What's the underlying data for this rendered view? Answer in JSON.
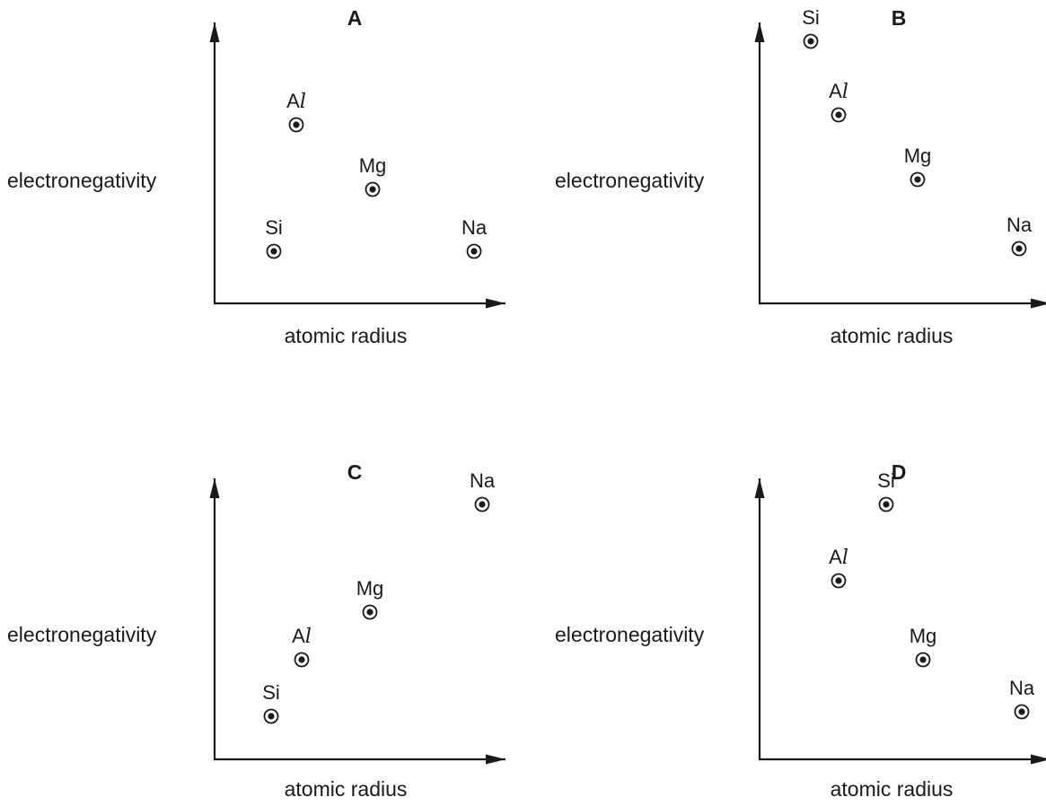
{
  "chart_data": [
    {
      "type": "scatter",
      "title": "A",
      "xlabel": "atomic radius",
      "ylabel": "electronegativity",
      "grid": false,
      "x_ticks": "none",
      "y_ticks": "none",
      "points": [
        {
          "label": "Al",
          "x": 0.29,
          "y": 0.75
        },
        {
          "label": "Mg",
          "x": 0.56,
          "y": 0.48
        },
        {
          "label": "Si",
          "x": 0.21,
          "y": 0.22
        },
        {
          "label": "Na",
          "x": 0.92,
          "y": 0.22
        }
      ]
    },
    {
      "type": "scatter",
      "title": "B",
      "xlabel": "atomic radius",
      "ylabel": "electronegativity",
      "grid": false,
      "x_ticks": "none",
      "y_ticks": "none",
      "points": [
        {
          "label": "Si",
          "x": 0.18,
          "y": 1.1
        },
        {
          "label": "Al",
          "x": 0.28,
          "y": 0.79
        },
        {
          "label": "Mg",
          "x": 0.56,
          "y": 0.52
        },
        {
          "label": "Na",
          "x": 0.92,
          "y": 0.23
        }
      ]
    },
    {
      "type": "scatter",
      "title": "C",
      "xlabel": "atomic radius",
      "ylabel": "electronegativity",
      "grid": false,
      "x_ticks": "none",
      "y_ticks": "none",
      "points": [
        {
          "label": "Na",
          "x": 0.95,
          "y": 1.07
        },
        {
          "label": "Mg",
          "x": 0.55,
          "y": 0.62
        },
        {
          "label": "Al",
          "x": 0.31,
          "y": 0.42
        },
        {
          "label": "Si",
          "x": 0.2,
          "y": 0.18
        }
      ]
    },
    {
      "type": "scatter",
      "title": "D",
      "xlabel": "atomic radius",
      "ylabel": "electronegativity",
      "grid": false,
      "x_ticks": "none",
      "y_ticks": "none",
      "points": [
        {
          "label": "Si",
          "x": 0.45,
          "y": 1.07
        },
        {
          "label": "Al",
          "x": 0.28,
          "y": 0.75
        },
        {
          "label": "Mg",
          "x": 0.58,
          "y": 0.42
        },
        {
          "label": "Na",
          "x": 0.93,
          "y": 0.2
        }
      ]
    }
  ]
}
